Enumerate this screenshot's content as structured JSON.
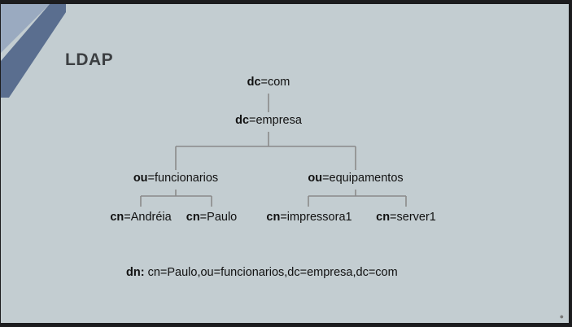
{
  "title": "LDAP",
  "tree": {
    "root": {
      "attr": "dc",
      "value": "com"
    },
    "level1": {
      "attr": "dc",
      "value": "empresa"
    },
    "ou_left": {
      "attr": "ou",
      "value": "funcionarios"
    },
    "ou_right": {
      "attr": "ou",
      "value": "equipamentos"
    },
    "leaf1": {
      "attr": "cn",
      "value": "Andréia"
    },
    "leaf2": {
      "attr": "cn",
      "value": "Paulo"
    },
    "leaf3": {
      "attr": "cn",
      "value": "impressora1"
    },
    "leaf4": {
      "attr": "cn",
      "value": "server1"
    }
  },
  "dn": {
    "label": "dn:",
    "value": "cn=Paulo,ou=funcionarios,dc=empresa,dc=com"
  },
  "eq": "=",
  "colors": {
    "slide_bg": "#c3cdd1",
    "accent": "#5a6e8f",
    "line": "#8a8a8a"
  }
}
